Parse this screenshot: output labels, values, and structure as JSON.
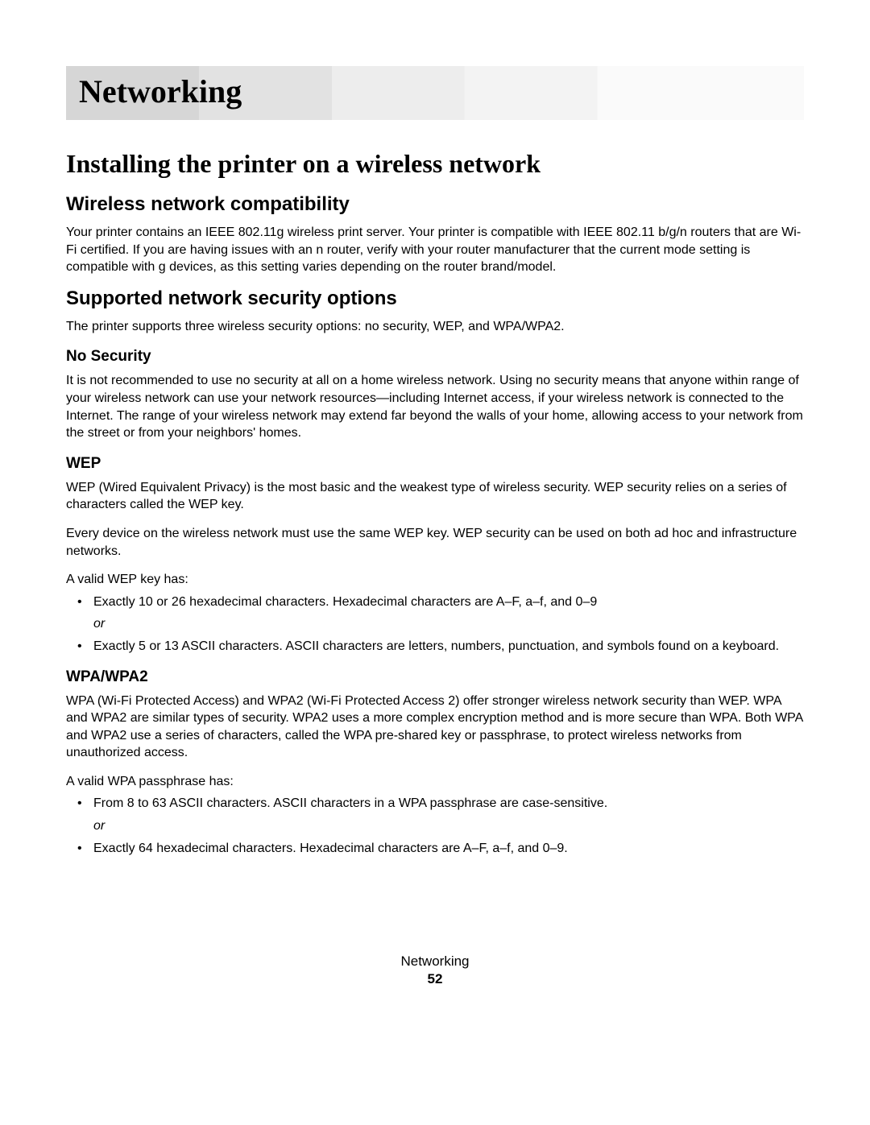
{
  "chapter": {
    "title": "Networking"
  },
  "section1": {
    "title": "Installing the printer on a wireless network",
    "sub1": {
      "title": "Wireless network compatibility",
      "p1": "Your printer contains an IEEE 802.11g wireless print server. Your printer is compatible with IEEE 802.11 b/g/n routers that are Wi-Fi certified. If you are having issues with an n router, verify with your router manufacturer that the current mode setting is compatible with g devices, as this setting varies depending on the router brand/model."
    },
    "sub2": {
      "title": "Supported network security options",
      "p1": "The printer supports three wireless security options: no security, WEP, and WPA/WPA2.",
      "nosec": {
        "title": "No Security",
        "p1": "It is not recommended to use no security at all on a home wireless network. Using no security means that anyone within range of your wireless network can use your network resources—including Internet access, if your wireless network is connected to the Internet. The range of your wireless network may extend far beyond the walls of your home, allowing access to your network from the street or from your neighbors' homes."
      },
      "wep": {
        "title": "WEP",
        "p1": "WEP (Wired Equivalent Privacy) is the most basic and the weakest type of wireless security. WEP security relies on a series of characters called the WEP key.",
        "p2": "Every device on the wireless network must use the same WEP key. WEP security can be used on both ad hoc and infrastructure networks.",
        "p3": "A valid WEP key has:",
        "b1": "Exactly 10 or 26 hexadecimal characters. Hexadecimal characters are A–F, a–f, and 0–9",
        "or": "or",
        "b2": "Exactly 5 or 13 ASCII characters. ASCII characters are letters, numbers, punctuation, and symbols found on a keyboard."
      },
      "wpa": {
        "title": "WPA/WPA2",
        "p1": "WPA (Wi-Fi Protected Access) and WPA2 (Wi-Fi Protected Access 2) offer stronger wireless network security than WEP. WPA and WPA2 are similar types of security. WPA2 uses a more complex encryption method and is more secure than WPA. Both WPA and WPA2 use a series of characters, called the WPA pre-shared key or passphrase, to protect wireless networks from unauthorized access.",
        "p2": "A valid WPA passphrase has:",
        "b1": "From 8 to 63 ASCII characters. ASCII characters in a WPA passphrase are case-sensitive.",
        "or": "or",
        "b2": "Exactly 64 hexadecimal characters. Hexadecimal characters are A–F, a–f, and 0–9."
      }
    }
  },
  "footer": {
    "section": "Networking",
    "page": "52"
  }
}
